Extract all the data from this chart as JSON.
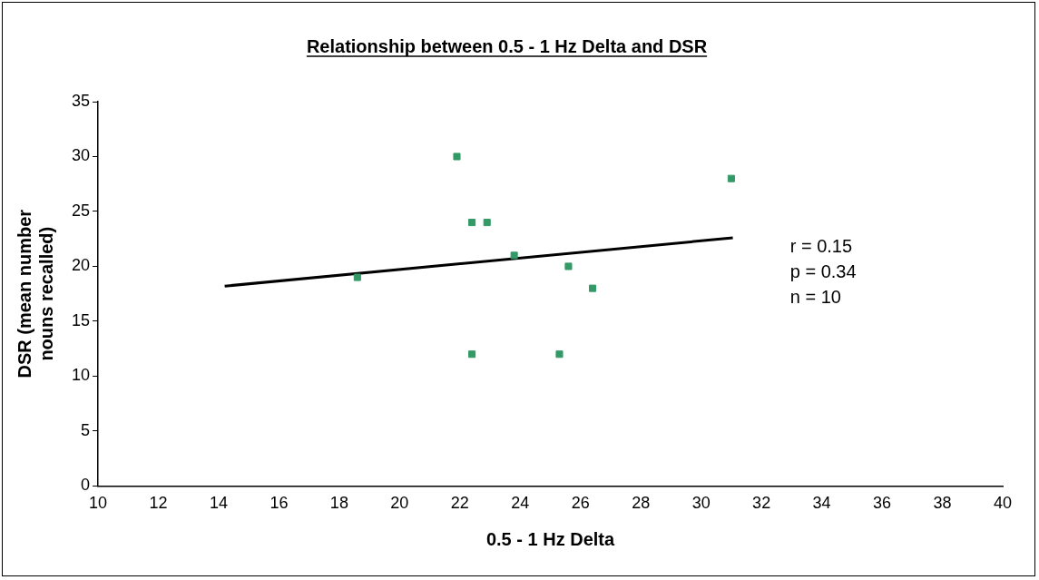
{
  "chart_data": {
    "type": "scatter",
    "title": "Relationship between 0.5 - 1 Hz Delta and DSR",
    "xlabel": "0.5 - 1 Hz Delta",
    "ylabel": "DSR (mean number nouns recalled)",
    "series": [
      {
        "color": "#339966",
        "x": [
          21.9,
          22.4,
          22.9,
          23.8,
          18.6,
          25.6,
          26.4,
          22.4,
          25.3,
          31.0
        ],
        "values": [
          30,
          24,
          24,
          21,
          19,
          20,
          18,
          12,
          12,
          28
        ]
      },
      {
        "type": "line",
        "marker": "none",
        "color": "#000000",
        "x": [
          14.2,
          31.05
        ],
        "values": [
          18.2,
          22.6
        ]
      }
    ],
    "marker": "square",
    "xlim": [
      10,
      40
    ],
    "xticks": [
      10,
      12,
      14,
      16,
      18,
      20,
      22,
      24,
      26,
      28,
      30,
      32,
      34,
      36,
      38,
      40
    ],
    "ylim": [
      0,
      35
    ],
    "yticks": [
      0,
      5,
      10,
      15,
      20,
      25,
      30,
      35
    ],
    "grid": false,
    "legend": false,
    "annotations": [
      "r = 0.15",
      "p = 0.34",
      "n = 10"
    ]
  }
}
